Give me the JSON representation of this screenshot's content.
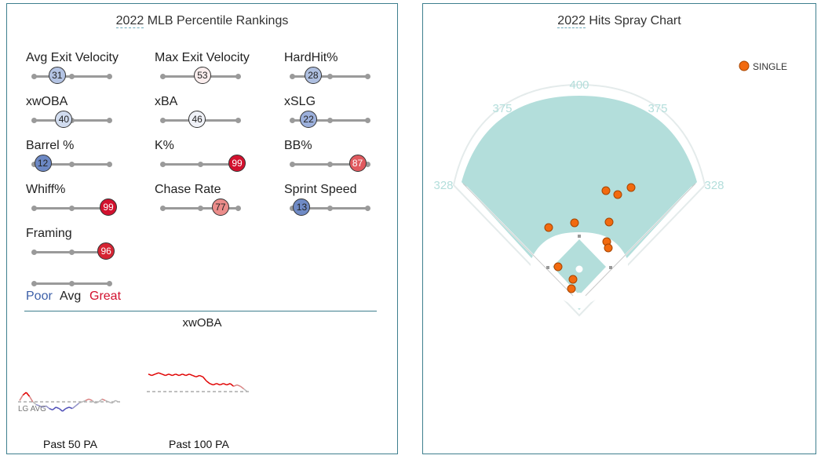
{
  "left_panel": {
    "title_year": "2022",
    "title_rest": " MLB Percentile Rankings",
    "metrics": [
      {
        "label": "Avg Exit Velocity",
        "value": 31,
        "color": "#b3c3e3",
        "text_color": "#222"
      },
      {
        "label": "Max Exit Velocity",
        "value": 53,
        "color": "#fbeeee",
        "text_color": "#222"
      },
      {
        "label": "HardHit%",
        "value": 28,
        "color": "#aebfe0",
        "text_color": "#222"
      },
      {
        "label": "xwOBA",
        "value": 40,
        "color": "#d1dcef",
        "text_color": "#222"
      },
      {
        "label": "xBA",
        "value": 46,
        "color": "#f0f2f8",
        "text_color": "#222"
      },
      {
        "label": "xSLG",
        "value": 22,
        "color": "#9cb0dc",
        "text_color": "#222"
      },
      {
        "label": "Barrel %",
        "value": 12,
        "color": "#6c88c4",
        "text_color": "#222"
      },
      {
        "label": "K%",
        "value": 99,
        "color": "#d2112e",
        "text_color": "#fff"
      },
      {
        "label": "BB%",
        "value": 87,
        "color": "#e05a5f",
        "text_color": "#fff"
      },
      {
        "label": "Whiff%",
        "value": 99,
        "color": "#d2112e",
        "text_color": "#fff"
      },
      {
        "label": "Chase Rate",
        "value": 77,
        "color": "#eb8c8a",
        "text_color": "#222"
      },
      {
        "label": "Sprint Speed",
        "value": 13,
        "color": "#6f8ac5",
        "text_color": "#222"
      },
      {
        "label": "Framing",
        "value": 96,
        "color": "#d52433",
        "text_color": "#fff"
      }
    ],
    "legend": {
      "poor": "Poor",
      "avg": "Avg",
      "great": "Great",
      "poor_color": "#3c5fa8",
      "great_color": "#d2112e"
    },
    "xwoba_title": "xwOBA",
    "lg_avg_label": "LG AVG",
    "spark1_label": "Past 50 PA",
    "spark2_label": "Past 100 PA"
  },
  "right_panel": {
    "title_year": "2022",
    "title_rest": " Hits Spray Chart",
    "legend_label": "SINGLE",
    "distances": {
      "left_line": "328",
      "left_center": "375",
      "center": "400",
      "right_center": "375",
      "right_line": "328"
    }
  },
  "chart_data": [
    {
      "type": "line",
      "title": "xwOBA",
      "series": [
        {
          "name": "Past 50 PA",
          "values": [
            0.3,
            0.34,
            0.36,
            0.33,
            0.29,
            0.27,
            0.26,
            0.25,
            0.26,
            0.24,
            0.23,
            0.25,
            0.24,
            0.22,
            0.24,
            0.25,
            0.24,
            0.26,
            0.28,
            0.29,
            0.3,
            0.31,
            0.3,
            0.28,
            0.29,
            0.31,
            0.3,
            0.29,
            0.28,
            0.3,
            0.29
          ]
        },
        {
          "name": "Past 100 PA",
          "values": [
            0.42,
            0.41,
            0.42,
            0.43,
            0.42,
            0.41,
            0.42,
            0.41,
            0.42,
            0.41,
            0.42,
            0.41,
            0.42,
            0.41,
            0.4,
            0.41,
            0.4,
            0.37,
            0.35,
            0.34,
            0.35,
            0.34,
            0.35,
            0.34,
            0.35,
            0.33,
            0.34,
            0.33,
            0.31,
            0.29
          ]
        }
      ],
      "lg_avg": 0.29
    },
    {
      "type": "scatter",
      "title": "2022 Hits Spray Chart",
      "series": [
        {
          "name": "SINGLE",
          "x": [
            772,
            787,
            804,
            699,
            732,
            776,
            773,
            775,
            711,
            730,
            728
          ],
          "y": [
            243,
            248,
            239,
            290,
            284,
            283,
            308,
            316,
            340,
            356,
            368
          ]
        }
      ]
    }
  ]
}
